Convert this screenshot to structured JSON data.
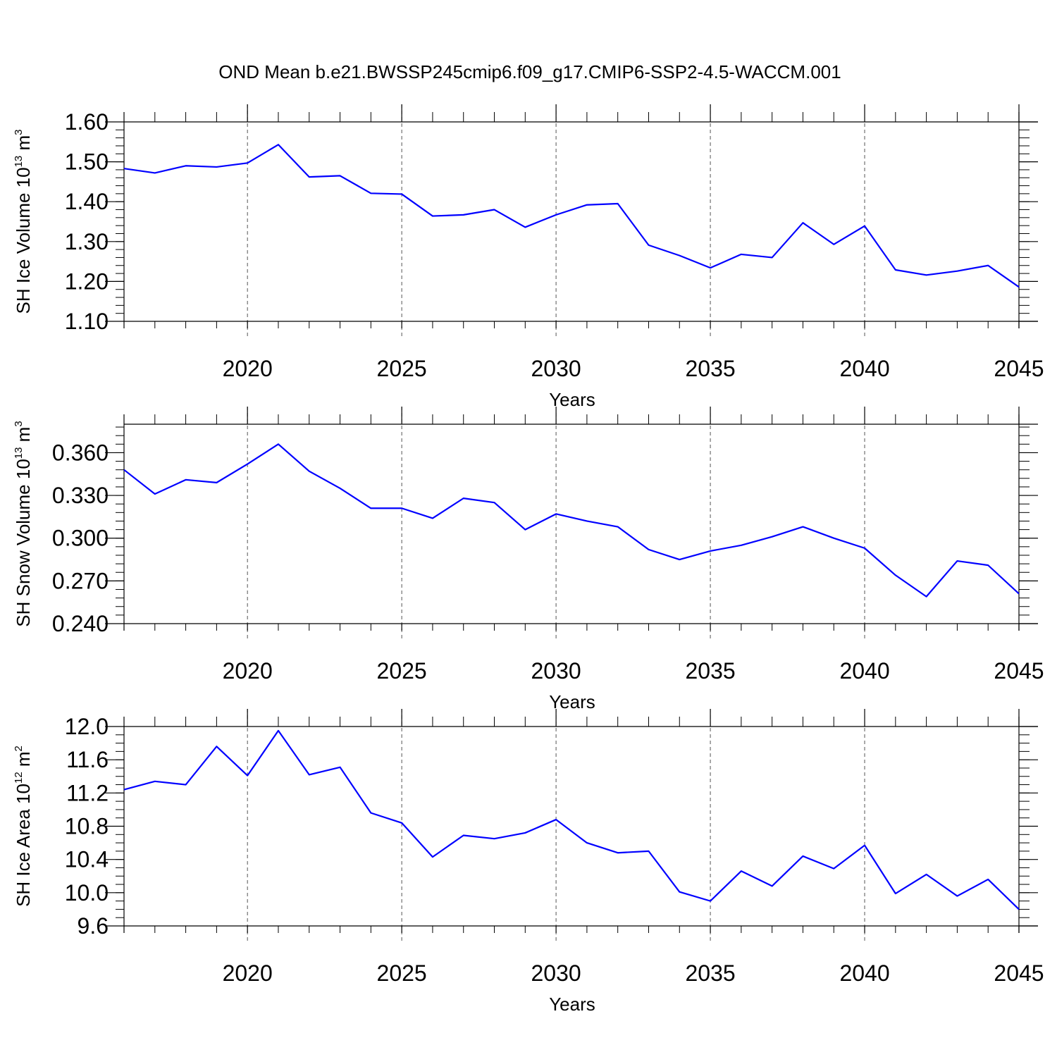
{
  "title": "OND Mean b.e21.BWSSP245cmip6.f09_g17.CMIP6-SSP2-4.5-WACCM.001",
  "colors": {
    "line": "#0000ff",
    "axis": "#000000",
    "grid": "#555555"
  },
  "chart_data": [
    {
      "type": "line",
      "ylabel": {
        "text": "SH Ice Volume 10",
        "exp": "13",
        "unit": " m",
        "unit_exp": "3"
      },
      "xlabel": "Years",
      "xlim": [
        2016,
        2045
      ],
      "ylim": [
        1.1,
        1.6
      ],
      "xticks": [
        2020,
        2025,
        2030,
        2035,
        2040,
        2045
      ],
      "yticks": [
        "1.10",
        "1.20",
        "1.30",
        "1.40",
        "1.50",
        "1.60"
      ],
      "x_minor_step": 1,
      "y_minor_step": 0.02,
      "grid": "dashed vertical at major x ticks",
      "x": [
        2016,
        2017,
        2018,
        2019,
        2020,
        2021,
        2022,
        2023,
        2024,
        2025,
        2026,
        2027,
        2028,
        2029,
        2030,
        2031,
        2032,
        2033,
        2034,
        2035,
        2036,
        2037,
        2038,
        2039,
        2040,
        2041,
        2042,
        2043,
        2044,
        2045
      ],
      "series": [
        {
          "values": [
            1.483,
            1.472,
            1.49,
            1.487,
            1.497,
            1.543,
            1.462,
            1.465,
            1.421,
            1.419,
            1.364,
            1.367,
            1.38,
            1.336,
            1.367,
            1.392,
            1.395,
            1.291,
            1.265,
            1.234,
            1.268,
            1.26,
            1.347,
            1.293,
            1.339,
            1.229,
            1.216,
            1.226,
            1.24,
            1.186
          ]
        }
      ]
    },
    {
      "type": "line",
      "ylabel": {
        "text": "SH Snow Volume 10",
        "exp": "13",
        "unit": " m",
        "unit_exp": "3"
      },
      "xlabel": "Years",
      "xlim": [
        2016,
        2045
      ],
      "ylim": [
        0.24,
        0.38
      ],
      "xticks": [
        2020,
        2025,
        2030,
        2035,
        2040,
        2045
      ],
      "yticks": [
        "0.240",
        "0.270",
        "0.300",
        "0.330",
        "0.360"
      ],
      "x_minor_step": 1,
      "y_minor_step": 0.006,
      "grid": "dashed vertical at major x ticks",
      "x": [
        2016,
        2017,
        2018,
        2019,
        2020,
        2021,
        2022,
        2023,
        2024,
        2025,
        2026,
        2027,
        2028,
        2029,
        2030,
        2031,
        2032,
        2033,
        2034,
        2035,
        2036,
        2037,
        2038,
        2039,
        2040,
        2041,
        2042,
        2043,
        2044,
        2045
      ],
      "series": [
        {
          "values": [
            0.348,
            0.331,
            0.341,
            0.339,
            0.352,
            0.366,
            0.347,
            0.335,
            0.321,
            0.321,
            0.314,
            0.328,
            0.325,
            0.306,
            0.317,
            0.312,
            0.308,
            0.292,
            0.285,
            0.291,
            0.295,
            0.301,
            0.308,
            0.3,
            0.293,
            0.274,
            0.259,
            0.284,
            0.281,
            0.261
          ]
        }
      ]
    },
    {
      "type": "line",
      "ylabel": {
        "text": "SH Ice Area 10",
        "exp": "12",
        "unit": " m",
        "unit_exp": "2"
      },
      "xlabel": "Years",
      "xlim": [
        2016,
        2045
      ],
      "ylim": [
        9.6,
        12.0
      ],
      "xticks": [
        2020,
        2025,
        2030,
        2035,
        2040,
        2045
      ],
      "yticks": [
        "9.6",
        "10.0",
        "10.4",
        "10.8",
        "11.2",
        "11.6",
        "12.0"
      ],
      "x_minor_step": 1,
      "y_minor_step": 0.1,
      "grid": "dashed vertical at major x ticks",
      "x": [
        2016,
        2017,
        2018,
        2019,
        2020,
        2021,
        2022,
        2023,
        2024,
        2025,
        2026,
        2027,
        2028,
        2029,
        2030,
        2031,
        2032,
        2033,
        2034,
        2035,
        2036,
        2037,
        2038,
        2039,
        2040,
        2041,
        2042,
        2043,
        2044,
        2045
      ],
      "series": [
        {
          "values": [
            11.24,
            11.34,
            11.3,
            11.76,
            11.41,
            11.95,
            11.42,
            11.51,
            10.96,
            10.84,
            10.43,
            10.69,
            10.65,
            10.72,
            10.88,
            10.6,
            10.48,
            10.5,
            10.01,
            9.9,
            10.26,
            10.08,
            10.44,
            10.29,
            10.57,
            9.99,
            10.22,
            9.96,
            10.16,
            9.8
          ]
        }
      ]
    }
  ]
}
